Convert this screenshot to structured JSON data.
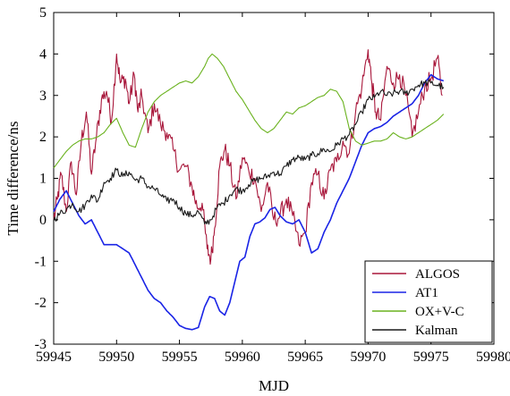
{
  "chart_data": {
    "type": "line",
    "title": "",
    "xlabel": "MJD",
    "ylabel": "Time difference/ns",
    "xlim": [
      59945,
      59980
    ],
    "ylim": [
      -3,
      5
    ],
    "xticks": [
      59945,
      59950,
      59955,
      59960,
      59965,
      59970,
      59975,
      59980
    ],
    "yticks": [
      -3,
      -2,
      -1,
      0,
      1,
      2,
      3,
      4,
      5
    ],
    "legend_position": "lower-right",
    "grid": false,
    "series": [
      {
        "name": "ALGOS",
        "color": "#a8163a",
        "noisy": true,
        "x": [
          59945.0,
          59945.3,
          59945.6,
          59946.0,
          59946.4,
          59946.8,
          59947.2,
          59947.6,
          59948.0,
          59948.4,
          59948.8,
          59949.2,
          59949.6,
          59950.0,
          59950.3,
          59950.7,
          59951.0,
          59951.4,
          59951.7,
          59952.0,
          59952.5,
          59953.0,
          59953.5,
          59954.0,
          59954.5,
          59955.0,
          59955.5,
          59956.0,
          59956.4,
          59956.8,
          59957.2,
          59957.5,
          59957.8,
          59958.2,
          59958.6,
          59959.0,
          59959.5,
          59960.0,
          59960.5,
          59961.0,
          59961.5,
          59962.0,
          59962.5,
          59963.0,
          59963.5,
          59964.0,
          59964.5,
          59965.0,
          59965.5,
          59966.0,
          59966.5,
          59967.0,
          59967.5,
          59968.0,
          59968.5,
          59969.0,
          59969.5,
          59970.0,
          59970.3,
          59970.6,
          59971.0,
          59971.5,
          59972.0,
          59972.5,
          59973.0,
          59973.5,
          59974.0,
          59974.5,
          59975.0,
          59975.5,
          59975.9
        ],
        "y": [
          0.0,
          0.5,
          1.1,
          0.2,
          1.4,
          0.6,
          1.9,
          2.6,
          1.1,
          2.0,
          2.9,
          3.1,
          2.4,
          4.0,
          3.3,
          3.4,
          2.8,
          3.5,
          2.6,
          3.0,
          2.1,
          2.8,
          2.3,
          2.1,
          1.7,
          1.2,
          1.3,
          0.8,
          0.3,
          0.4,
          -0.7,
          -0.95,
          -0.2,
          1.3,
          1.7,
          1.3,
          0.5,
          1.5,
          1.2,
          1.0,
          0.2,
          0.9,
          0.0,
          0.1,
          0.5,
          0.1,
          -0.6,
          -0.3,
          0.9,
          1.1,
          0.5,
          1.2,
          1.4,
          1.9,
          1.6,
          2.6,
          3.2,
          4.1,
          3.3,
          2.6,
          2.4,
          3.7,
          3.3,
          3.5,
          3.0,
          2.0,
          2.6,
          3.2,
          3.4,
          3.9,
          3.0
        ]
      },
      {
        "name": "AT1",
        "color": "#1a24e6",
        "noisy": false,
        "x": [
          59945.0,
          59945.5,
          59946.0,
          59946.5,
          59947.0,
          59947.5,
          59948.0,
          59948.5,
          59949.0,
          59949.5,
          59950.0,
          59950.5,
          59951.0,
          59951.5,
          59952.0,
          59952.5,
          59953.0,
          59953.5,
          59954.0,
          59954.5,
          59955.0,
          59955.5,
          59956.0,
          59956.5,
          59957.0,
          59957.4,
          59957.8,
          59958.2,
          59958.6,
          59959.0,
          59959.4,
          59959.8,
          59960.2,
          59960.6,
          59961.0,
          59961.4,
          59961.8,
          59962.2,
          59962.6,
          59963.0,
          59963.5,
          59964.0,
          59964.5,
          59965.0,
          59965.5,
          59966.0,
          59966.5,
          59967.0,
          59967.5,
          59968.0,
          59968.5,
          59969.0,
          59969.5,
          59970.0,
          59970.5,
          59971.0,
          59971.5,
          59972.0,
          59972.5,
          59973.0,
          59973.5,
          59974.0,
          59974.5,
          59975.0,
          59975.5,
          59976.0
        ],
        "y": [
          0.2,
          0.5,
          0.7,
          0.4,
          0.1,
          -0.1,
          0.0,
          -0.3,
          -0.6,
          -0.6,
          -0.6,
          -0.7,
          -0.8,
          -1.1,
          -1.4,
          -1.7,
          -1.9,
          -2.0,
          -2.2,
          -2.35,
          -2.55,
          -2.62,
          -2.65,
          -2.6,
          -2.1,
          -1.85,
          -1.9,
          -2.2,
          -2.3,
          -2.0,
          -1.5,
          -1.0,
          -0.9,
          -0.4,
          -0.1,
          -0.05,
          0.05,
          0.25,
          0.3,
          0.1,
          -0.05,
          -0.1,
          0.0,
          -0.3,
          -0.8,
          -0.7,
          -0.3,
          0.0,
          0.4,
          0.7,
          1.0,
          1.4,
          1.8,
          2.1,
          2.2,
          2.25,
          2.35,
          2.5,
          2.6,
          2.7,
          2.8,
          3.0,
          3.3,
          3.5,
          3.4,
          3.35
        ]
      },
      {
        "name": "OX+V-C",
        "color": "#6ab21e",
        "noisy": false,
        "x": [
          59945.0,
          59945.5,
          59946.0,
          59946.5,
          59947.0,
          59947.5,
          59948.0,
          59948.5,
          59949.0,
          59949.5,
          59950.0,
          59950.5,
          59951.0,
          59951.5,
          59952.0,
          59952.5,
          59953.0,
          59953.5,
          59954.0,
          59954.5,
          59955.0,
          59955.5,
          59956.0,
          59956.5,
          59957.0,
          59957.3,
          59957.6,
          59958.0,
          59958.5,
          59959.0,
          59959.5,
          59960.0,
          59960.5,
          59961.0,
          59961.5,
          59962.0,
          59962.5,
          59963.0,
          59963.5,
          59964.0,
          59964.5,
          59965.0,
          59965.5,
          59966.0,
          59966.5,
          59967.0,
          59967.5,
          59968.0,
          59968.5,
          59969.0,
          59969.5,
          59970.0,
          59970.5,
          59971.0,
          59971.5,
          59972.0,
          59972.5,
          59973.0,
          59973.5,
          59974.0,
          59974.5,
          59975.0,
          59975.5,
          59976.0
        ],
        "y": [
          1.25,
          1.45,
          1.65,
          1.8,
          1.9,
          1.95,
          1.95,
          2.0,
          2.1,
          2.3,
          2.45,
          2.1,
          1.8,
          1.75,
          2.2,
          2.6,
          2.85,
          3.0,
          3.1,
          3.2,
          3.3,
          3.35,
          3.3,
          3.45,
          3.7,
          3.9,
          4.0,
          3.9,
          3.7,
          3.4,
          3.1,
          2.9,
          2.65,
          2.4,
          2.2,
          2.1,
          2.2,
          2.4,
          2.6,
          2.55,
          2.7,
          2.75,
          2.85,
          2.95,
          3.0,
          3.15,
          3.1,
          2.85,
          2.2,
          1.9,
          1.8,
          1.85,
          1.9,
          1.9,
          1.95,
          2.1,
          2.0,
          1.95,
          2.0,
          2.1,
          2.2,
          2.3,
          2.4,
          2.55
        ]
      },
      {
        "name": "Kalman",
        "color": "#1a1a1a",
        "noisy": true,
        "x": [
          59945.0,
          59945.5,
          59946.0,
          59946.5,
          59947.0,
          59947.5,
          59948.0,
          59948.5,
          59949.0,
          59949.5,
          59950.0,
          59950.5,
          59951.0,
          59951.5,
          59952.0,
          59952.5,
          59953.0,
          59953.5,
          59954.0,
          59954.5,
          59955.0,
          59955.5,
          59956.0,
          59956.5,
          59957.0,
          59957.5,
          59958.0,
          59958.5,
          59959.0,
          59959.5,
          59960.0,
          59960.5,
          59961.0,
          59961.5,
          59962.0,
          59962.5,
          59963.0,
          59963.5,
          59964.0,
          59964.5,
          59965.0,
          59965.5,
          59966.0,
          59966.5,
          59967.0,
          59967.5,
          59968.0,
          59968.5,
          59969.0,
          59969.5,
          59970.0,
          59970.5,
          59971.0,
          59971.5,
          59972.0,
          59972.5,
          59973.0,
          59973.5,
          59974.0,
          59974.5,
          59975.0,
          59975.5,
          59976.0
        ],
        "y": [
          0.0,
          0.15,
          0.25,
          0.4,
          0.2,
          0.35,
          0.6,
          0.45,
          0.9,
          1.0,
          1.2,
          1.05,
          1.15,
          0.95,
          1.0,
          0.8,
          0.75,
          0.6,
          0.45,
          0.5,
          0.3,
          0.15,
          0.1,
          0.2,
          -0.1,
          0.0,
          0.3,
          0.4,
          0.6,
          0.75,
          0.7,
          0.85,
          0.95,
          1.0,
          1.05,
          1.15,
          1.1,
          1.3,
          1.45,
          1.5,
          1.45,
          1.55,
          1.6,
          1.7,
          1.65,
          1.8,
          1.95,
          2.05,
          2.3,
          2.6,
          2.9,
          2.95,
          3.1,
          3.0,
          3.05,
          3.1,
          3.05,
          3.15,
          3.25,
          3.3,
          3.3,
          3.25,
          3.2
        ]
      }
    ]
  }
}
